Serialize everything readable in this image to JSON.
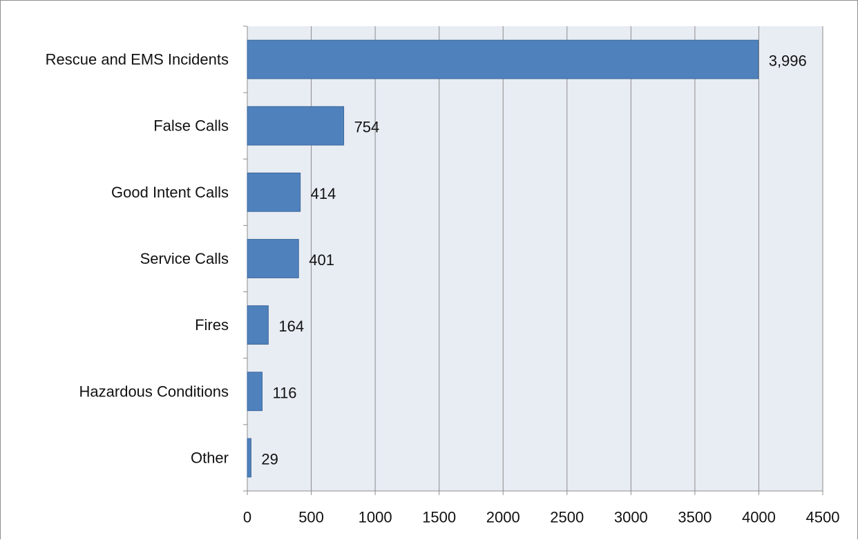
{
  "chart_data": {
    "type": "bar",
    "orientation": "horizontal",
    "title": "",
    "xlabel": "",
    "ylabel": "",
    "categories": [
      "Rescue and EMS Incidents",
      "False Calls",
      "Good Intent Calls",
      "Service Calls",
      "Fires",
      "Hazardous Conditions",
      "Other"
    ],
    "values": [
      3996,
      754,
      414,
      401,
      164,
      116,
      29
    ],
    "data_labels": [
      "3,996",
      "754",
      "414",
      "401",
      "164",
      "116",
      "29"
    ],
    "xlim": [
      0,
      4500
    ],
    "xticks": [
      0,
      500,
      1000,
      1500,
      2000,
      2500,
      3000,
      3500,
      4000,
      4500
    ],
    "xtick_labels": [
      "0",
      "500",
      "1000",
      "1500",
      "2000",
      "2500",
      "3000",
      "3500",
      "4000",
      "4500"
    ],
    "grid": "vertical",
    "legend": "none",
    "colors": {
      "bar_fill": "#4f81bd",
      "bar_stroke": "#3a6799",
      "plot_background": "#e8ecf3",
      "gridline": "#8c8c8c",
      "frame": "#8e8e8e"
    }
  }
}
